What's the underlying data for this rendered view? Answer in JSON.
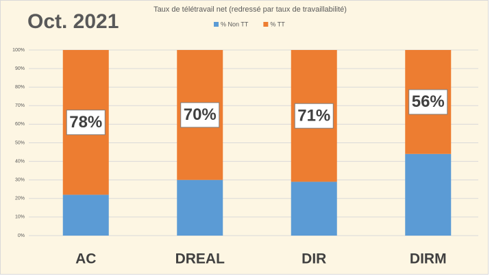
{
  "chart_data": {
    "type": "stacked_bar",
    "title": "Taux de télétravail net (redressé par taux de travaillabilité)",
    "annotation": "Oct. 2021",
    "categories": [
      "AC",
      "DREAL",
      "DIR",
      "DIRM"
    ],
    "series": [
      {
        "name": "% Non TT",
        "color": "#5b9bd5",
        "values": [
          22,
          30,
          29,
          44
        ]
      },
      {
        "name": "% TT",
        "color": "#ed7d31",
        "values": [
          78,
          70,
          71,
          56
        ],
        "value_labels": [
          "78%",
          "70%",
          "71%",
          "56%"
        ]
      }
    ],
    "ylim": [
      0,
      100
    ],
    "yticks": [
      {
        "value": 0,
        "label": "0%"
      },
      {
        "value": 10,
        "label": "10%"
      },
      {
        "value": 20,
        "label": "20%"
      },
      {
        "value": 30,
        "label": "30%"
      },
      {
        "value": 40,
        "label": "40%"
      },
      {
        "value": 50,
        "label": "50%"
      },
      {
        "value": 60,
        "label": "60%"
      },
      {
        "value": 70,
        "label": "70%"
      },
      {
        "value": 80,
        "label": "80%"
      },
      {
        "value": 90,
        "label": "90%"
      },
      {
        "value": 100,
        "label": "100%"
      }
    ],
    "grid": true,
    "legend": "top"
  }
}
